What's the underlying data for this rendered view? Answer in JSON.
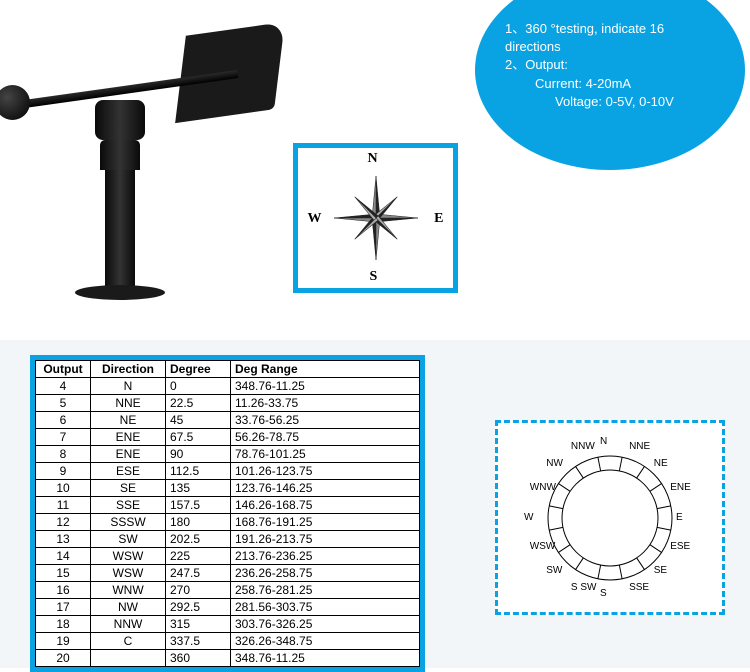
{
  "bubble": {
    "line1": "1、360 °testing, indicate 16 directions",
    "line2": "2、Output:",
    "line3": "Current: 4-20mA",
    "line4": "Voltage: 0-5V, 0-10V"
  },
  "compass1": {
    "N": "N",
    "E": "E",
    "S": "S",
    "W": "W"
  },
  "table": {
    "headers": [
      "Output",
      "Direction",
      "Degree",
      "Deg Range"
    ],
    "rows": [
      [
        "4",
        "N",
        "0",
        "348.76-11.25"
      ],
      [
        "5",
        "NNE",
        "22.5",
        "11.26-33.75"
      ],
      [
        "6",
        "NE",
        "45",
        "33.76-56.25"
      ],
      [
        "7",
        "ENE",
        "67.5",
        "56.26-78.75"
      ],
      [
        "8",
        "ENE",
        "90",
        "78.76-101.25"
      ],
      [
        "9",
        "ESE",
        "112.5",
        "101.26-123.75"
      ],
      [
        "10",
        "SE",
        "135",
        "123.76-146.25"
      ],
      [
        "11",
        "SSE",
        "157.5",
        "146.26-168.75"
      ],
      [
        "12",
        "SSSW",
        "180",
        "168.76-191.25"
      ],
      [
        "13",
        "SW",
        "202.5",
        "191.26-213.75"
      ],
      [
        "14",
        "WSW",
        "225",
        "213.76-236.25"
      ],
      [
        "15",
        "WSW",
        "247.5",
        "236.26-258.75"
      ],
      [
        "16",
        "WNW",
        "270",
        "258.76-281.25"
      ],
      [
        "17",
        "NW",
        "292.5",
        "281.56-303.75"
      ],
      [
        "18",
        "NNW",
        "315",
        "303.76-326.25"
      ],
      [
        "19",
        "C",
        "337.5",
        "326.26-348.75"
      ],
      [
        "20",
        "",
        "360",
        "348.76-11.25"
      ]
    ]
  },
  "wheel_labels": [
    "N",
    "NNE",
    "NE",
    "ENE",
    "E",
    "ESE",
    "SE",
    "SSE",
    "S",
    "S SW",
    "SW",
    "WSW",
    "W",
    "WNW",
    "NW",
    "NNW"
  ],
  "colors": {
    "accent": "#09a2e3",
    "table_border": "#000000",
    "bg_bottom": "#f2f6f8"
  }
}
